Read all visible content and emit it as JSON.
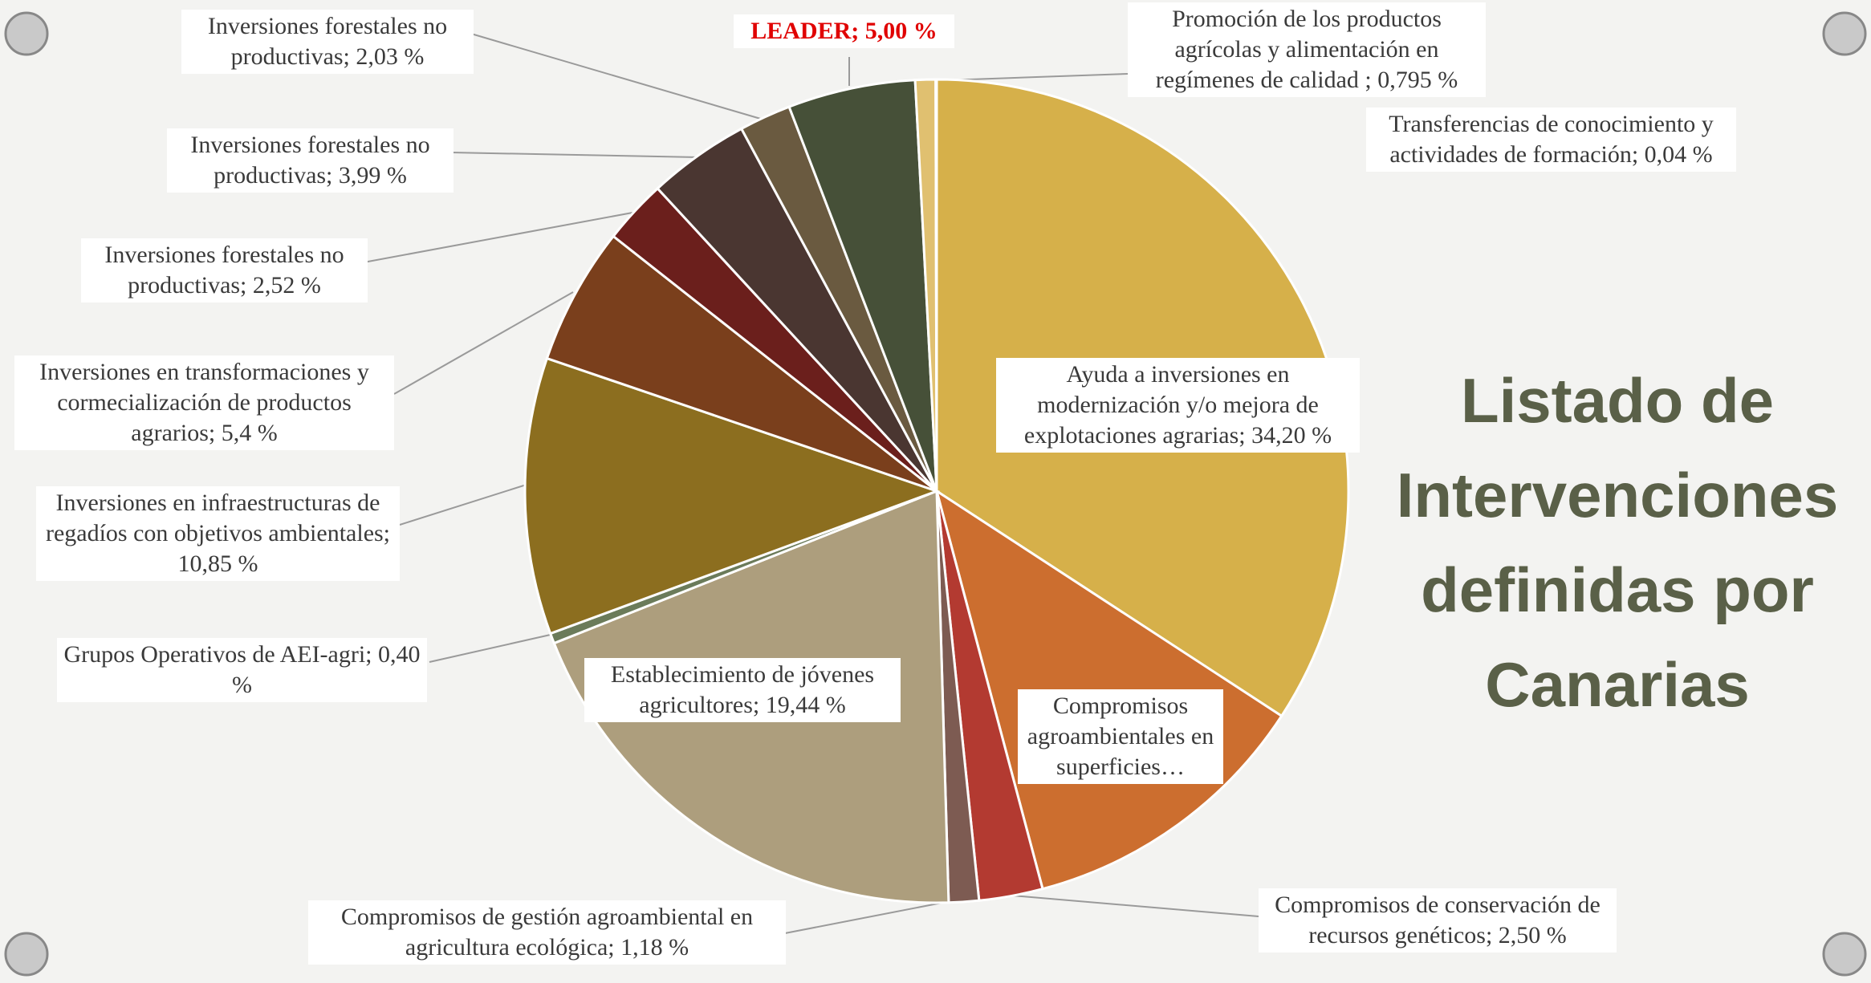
{
  "chart_data": {
    "type": "pie",
    "title": "Listado de Intervenciones definidas por Canarias",
    "categories": [
      "Ayuda a inversiones en modernización y/o mejora de explotaciones agrarias; 34,20 %",
      "Compromisos agroambientales en superficies…",
      "Compromisos de conservación de recursos genéticos; 2,50 %",
      "Compromisos de gestión agroambiental en agricultura ecológica; 1,18 %",
      "Establecimiento de jóvenes agricultores; 19,44 %",
      "Grupos Operativos de AEI-agri; 0,40 %",
      "Inversiones en infraestructuras de regadíos con objetivos ambientales; 10,85 %",
      "Inversiones en transformaciones y cormecialización de productos agrarios; 5,4 %",
      "Inversiones forestales no productivas; 2,52 %",
      "Inversiones forestales no productivas; 3,99 %",
      "Inversiones forestales no productivas; 2,03 %",
      "LEADER; 5,00 %",
      "Promoción de los productos agrícolas y alimentación en regímenes de calidad ; 0,795 %",
      "Transferencias de conocimiento y actividades de formación; 0,04 %"
    ],
    "values": [
      34.2,
      11.66,
      2.5,
      1.18,
      19.44,
      0.4,
      10.85,
      5.4,
      2.52,
      3.99,
      2.03,
      5.0,
      0.795,
      0.04
    ],
    "colors": [
      "#d6b04a",
      "#cc6e2f",
      "#b33a31",
      "#7d5b52",
      "#ad9e7d",
      "#6b7b5a",
      "#8c6e1f",
      "#7a3f1c",
      "#6b1f1c",
      "#4a3631",
      "#6a5a40",
      "#465038",
      "#e0c070",
      "#e8d8a0"
    ]
  }
}
